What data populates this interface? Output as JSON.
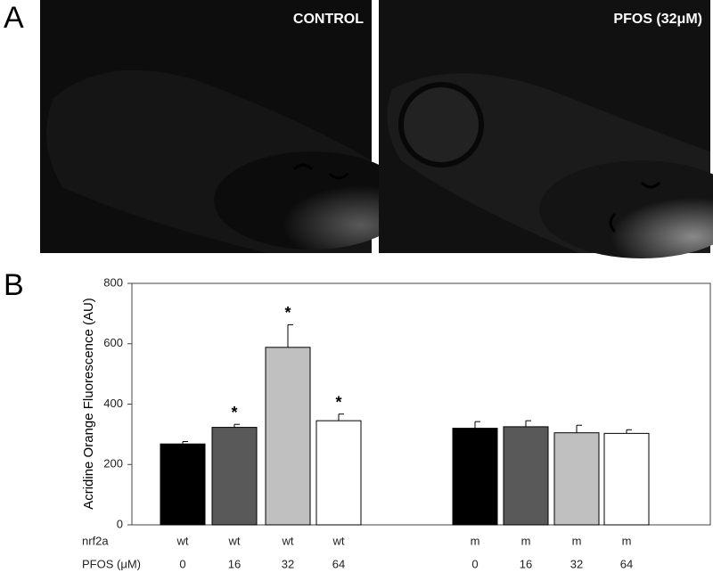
{
  "panel_a": {
    "label": "A",
    "images": [
      {
        "caption": "CONTROL"
      },
      {
        "caption": "PFOS (32μM)"
      }
    ]
  },
  "chart_data": {
    "type": "bar",
    "panel_label": "B",
    "y_label": "Acridine Orange Fluorescence (AU)",
    "row_labels": [
      "nrf2a",
      "PFOS (μM)"
    ],
    "categories": [
      "wt",
      "wt",
      "wt",
      "wt",
      "m",
      "m",
      "m",
      "m"
    ],
    "doses": [
      0,
      16,
      32,
      64,
      0,
      16,
      32,
      64
    ],
    "values": [
      268,
      323,
      588,
      345,
      320,
      325,
      305,
      303
    ],
    "errors": [
      8,
      10,
      75,
      22,
      22,
      20,
      25,
      12
    ],
    "colors": [
      "#000000",
      "#595959",
      "#c0c0c0",
      "#ffffff",
      "#000000",
      "#595959",
      "#c0c0c0",
      "#ffffff"
    ],
    "markers": [
      null,
      "*",
      "*",
      "*",
      null,
      null,
      null,
      null
    ],
    "ylim": [
      0,
      800
    ],
    "yticks": [
      0,
      200,
      400,
      600,
      800
    ]
  }
}
